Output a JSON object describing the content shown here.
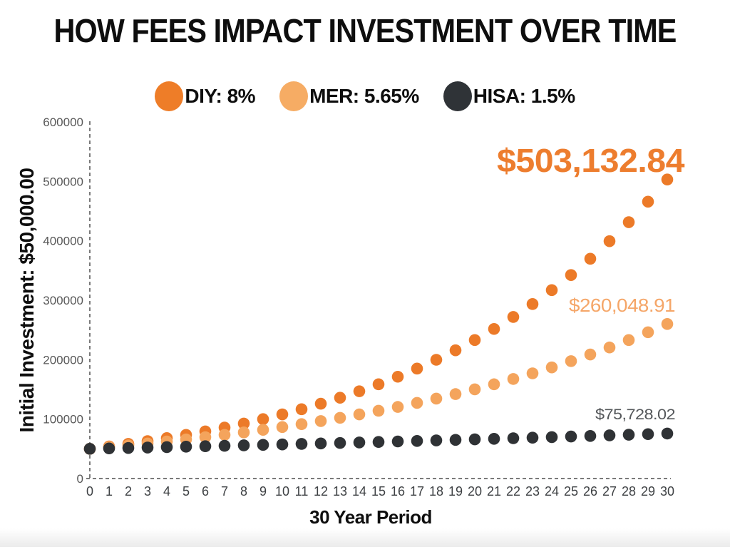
{
  "title": "HOW FEES IMPACT INVESTMENT OVER TIME",
  "y_axis_label": "Initial Investment: $50,000.00",
  "x_axis_label": "30 Year Period",
  "legend": [
    {
      "id": "diy",
      "label": "DIY: 8%",
      "color": "#EE7D28"
    },
    {
      "id": "mer",
      "label": "MER: 5.65%",
      "color": "#F6AC64"
    },
    {
      "id": "hisa",
      "label": "HISA: 1.5%",
      "color": "#2F3337"
    }
  ],
  "chart_data": {
    "type": "scatter",
    "title": "HOW FEES IMPACT INVESTMENT OVER TIME",
    "xlabel": "30 Year Period",
    "ylabel": "Initial Investment: $50,000.00",
    "initial_investment": 50000,
    "xlim": [
      0,
      30
    ],
    "ylim": [
      0,
      600000
    ],
    "x_ticks": [
      0,
      1,
      2,
      3,
      4,
      5,
      6,
      7,
      8,
      9,
      10,
      11,
      12,
      13,
      14,
      15,
      16,
      17,
      18,
      19,
      20,
      21,
      22,
      23,
      24,
      25,
      26,
      27,
      28,
      29,
      30
    ],
    "y_ticks": [
      0,
      100000,
      200000,
      300000,
      400000,
      500000,
      600000
    ],
    "grid": false,
    "legend_position": "top-center",
    "x": [
      0,
      1,
      2,
      3,
      4,
      5,
      6,
      7,
      8,
      9,
      10,
      11,
      12,
      13,
      14,
      15,
      16,
      17,
      18,
      19,
      20,
      21,
      22,
      23,
      24,
      25,
      26,
      27,
      28,
      29,
      30
    ],
    "series": [
      {
        "name": "DIY: 8%",
        "annual_return_percent": 8,
        "color": "#EC7A28",
        "label_color": "#ED7D2E",
        "final_value_label": "$503,132.84",
        "values": [
          50000,
          54000,
          58320,
          62985.6,
          68024.45,
          73466.4,
          79343.72,
          85691.21,
          92546.51,
          99950.23,
          107946.25,
          116581.95,
          125908.5,
          135981.18,
          146859.68,
          158608.45,
          171297.13,
          185000.9,
          199800.97,
          215785.05,
          233047.86,
          251691.68,
          271827.02,
          293573.18,
          317059.03,
          342423.76,
          369817.66,
          399403.07,
          431355.32,
          465863.74,
          503132.84
        ]
      },
      {
        "name": "MER: 5.65%",
        "annual_return_percent": 5.65,
        "color": "#F4A45C",
        "label_color": "#F5A668",
        "final_value_label": "$260,048.91",
        "values": [
          50000,
          52825,
          55809.61,
          58962.86,
          62294.26,
          65813.88,
          69532.37,
          73460.95,
          77611.49,
          81996.54,
          86629.34,
          91523.9,
          96695,
          102158.27,
          107930.21,
          114028.27,
          120470.86,
          127277.47,
          134468.65,
          142066.12,
          150092.86,
          158573.11,
          167532.49,
          176998.07,
          186998.46,
          197563.88,
          208726.24,
          220519.27,
          232978.61,
          246141.9,
          260048.91
        ]
      },
      {
        "name": "HISA: 1.5%",
        "annual_return_percent": 1.5,
        "color": "#2F3235",
        "label_color": "#55585B",
        "final_value_label": "$75,728.02",
        "values": [
          50000,
          50696.69,
          51403.08,
          52119.25,
          52845.15,
          53582.1,
          54329.25,
          55087,
          55855.15,
          56634.1,
          57423.85,
          58224.65,
          59036.6,
          59859.9,
          60694.65,
          61541.1,
          62399.3,
          63269.5,
          64151.85,
          65046.5,
          65953.6,
          66873.35,
          67805.95,
          68751.55,
          69710.35,
          70682.5,
          71668.2,
          72667.65,
          73681.05,
          74708.6,
          75728.02
        ]
      }
    ]
  }
}
